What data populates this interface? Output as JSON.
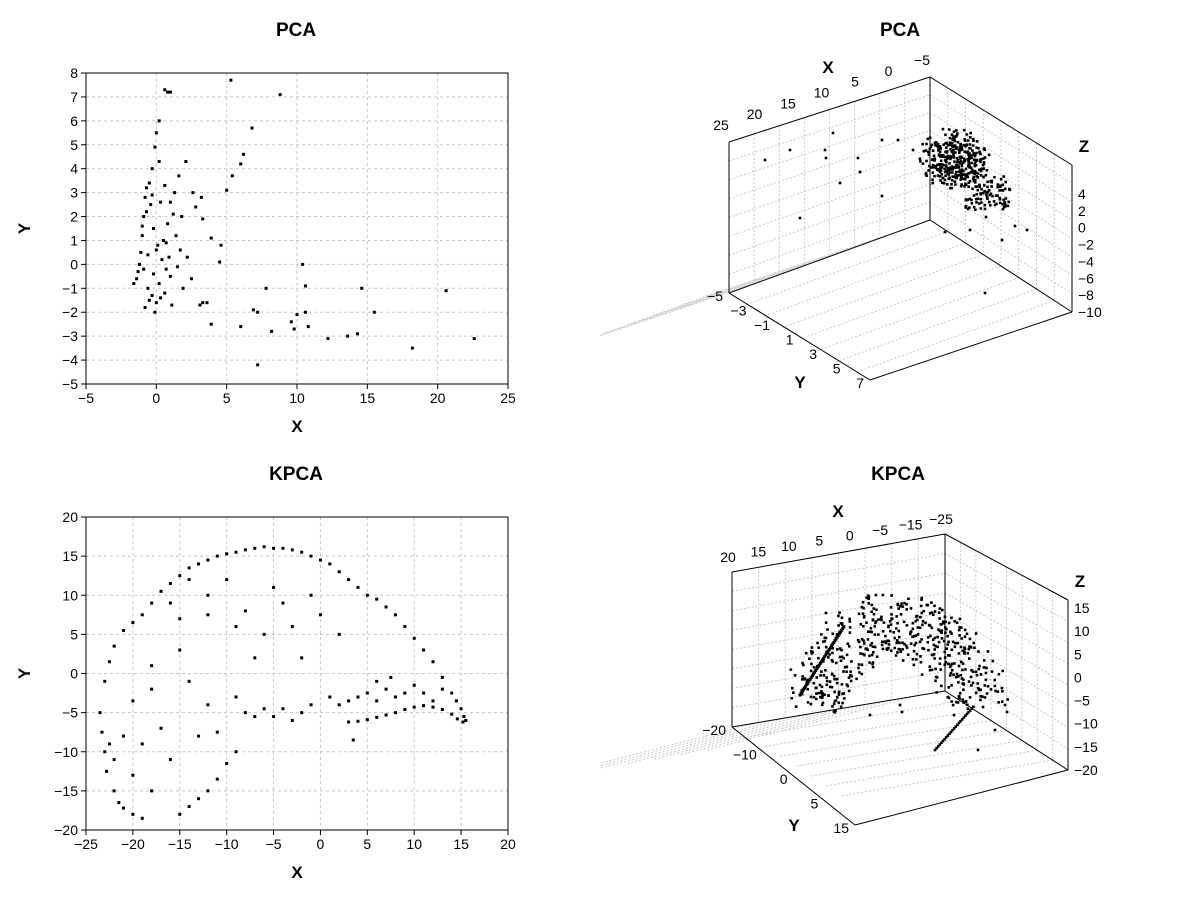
{
  "chart_data": [
    {
      "type": "scatter",
      "title": "PCA",
      "xlabel": "X",
      "ylabel": "Y",
      "xlim": [
        -5,
        25
      ],
      "ylim": [
        -5,
        8
      ],
      "xticks": [
        "-5",
        "0",
        "5",
        "10",
        "15",
        "20",
        "25"
      ],
      "yticks": [
        "-5",
        "-4",
        "-3",
        "-2",
        "-1",
        "0",
        "1",
        "2",
        "3",
        "4",
        "5",
        "6",
        "7",
        "8"
      ],
      "grid": true,
      "points": [
        [
          0.6,
          7.3
        ],
        [
          0.8,
          7.2
        ],
        [
          1.0,
          7.2
        ],
        [
          5.3,
          7.7
        ],
        [
          8.8,
          7.1
        ],
        [
          6.8,
          5.7
        ],
        [
          6.2,
          4.6
        ],
        [
          6.0,
          4.2
        ],
        [
          5.4,
          3.7
        ],
        [
          5.0,
          3.1
        ],
        [
          0.2,
          6.0
        ],
        [
          0.0,
          5.5
        ],
        [
          -0.1,
          4.9
        ],
        [
          0.2,
          4.3
        ],
        [
          -0.3,
          4.0
        ],
        [
          2.1,
          4.3
        ],
        [
          1.6,
          3.7
        ],
        [
          2.6,
          3.0
        ],
        [
          2.8,
          2.4
        ],
        [
          3.2,
          2.8
        ],
        [
          3.3,
          1.9
        ],
        [
          3.9,
          1.1
        ],
        [
          4.6,
          0.8
        ],
        [
          4.5,
          0.1
        ],
        [
          3.3,
          -1.6
        ],
        [
          3.1,
          -1.7
        ],
        [
          3.6,
          -1.6
        ],
        [
          3.9,
          -2.5
        ],
        [
          7.8,
          -1.0
        ],
        [
          6.9,
          -1.9
        ],
        [
          7.2,
          -2.0
        ],
        [
          6.0,
          -2.6
        ],
        [
          8.2,
          -2.8
        ],
        [
          7.2,
          -4.2
        ],
        [
          10.4,
          0.0
        ],
        [
          10.6,
          -0.9
        ],
        [
          10.0,
          -2.1
        ],
        [
          10.6,
          -2.0
        ],
        [
          9.6,
          -2.4
        ],
        [
          9.8,
          -2.7
        ],
        [
          10.8,
          -2.6
        ],
        [
          12.2,
          -3.1
        ],
        [
          13.6,
          -3.0
        ],
        [
          14.3,
          -2.9
        ],
        [
          15.5,
          -2.0
        ],
        [
          14.6,
          -1.0
        ],
        [
          18.2,
          -3.5
        ],
        [
          20.6,
          -1.1
        ],
        [
          22.6,
          -3.1
        ],
        [
          -1.4,
          -0.6
        ],
        [
          -1.3,
          -0.3
        ],
        [
          -1.1,
          0.5
        ],
        [
          -1.0,
          1.2
        ],
        [
          -0.9,
          2.0
        ],
        [
          -0.8,
          2.8
        ],
        [
          -0.7,
          3.2
        ],
        [
          -0.4,
          2.5
        ],
        [
          -0.2,
          1.5
        ],
        [
          0.1,
          0.8
        ],
        [
          0.4,
          0.2
        ],
        [
          0.7,
          -0.2
        ],
        [
          1.0,
          -0.5
        ],
        [
          -0.6,
          -1.0
        ],
        [
          -0.3,
          -1.3
        ],
        [
          0.0,
          -1.6
        ],
        [
          0.3,
          -1.4
        ],
        [
          0.6,
          -1.2
        ],
        [
          -0.8,
          -1.8
        ],
        [
          -0.5,
          -1.5
        ],
        [
          1.4,
          1.2
        ],
        [
          1.7,
          0.6
        ],
        [
          1.2,
          2.1
        ],
        [
          0.8,
          1.7
        ],
        [
          0.5,
          1.0
        ],
        [
          -1.6,
          -0.8
        ],
        [
          -1.2,
          0.0
        ],
        [
          -0.6,
          0.4
        ],
        [
          -0.2,
          -0.4
        ],
        [
          0.2,
          -0.8
        ],
        [
          0.9,
          0.3
        ],
        [
          1.5,
          -0.1
        ],
        [
          2.2,
          0.3
        ],
        [
          2.5,
          -0.6
        ],
        [
          1.9,
          -1.0
        ],
        [
          1.1,
          -1.7
        ],
        [
          -0.1,
          -2.0
        ],
        [
          -0.7,
          2.2
        ],
        [
          -0.5,
          3.4
        ],
        [
          -0.3,
          2.9
        ],
        [
          0.3,
          2.6
        ],
        [
          0.6,
          3.3
        ],
        [
          1.0,
          2.6
        ],
        [
          1.3,
          3.0
        ],
        [
          -1.0,
          1.6
        ],
        [
          -0.9,
          -0.2
        ],
        [
          0.0,
          0.6
        ],
        [
          0.7,
          0.9
        ],
        [
          1.8,
          2.0
        ]
      ]
    },
    {
      "type": "scatter",
      "title": "PCA",
      "xlabel": "X",
      "ylabel": "Y",
      "zlabel": "Z",
      "xticks": [
        "25",
        "20",
        "15",
        "10",
        "5",
        "0",
        "-5"
      ],
      "yticks": [
        "-5",
        "-3",
        "-1",
        "1",
        "3",
        "5",
        "7"
      ],
      "zticks": [
        "4",
        "2",
        "0",
        "-2",
        "-4",
        "-6",
        "-8",
        "-10"
      ],
      "grid": true
    },
    {
      "type": "scatter",
      "title": "KPCA",
      "xlabel": "X",
      "ylabel": "Y",
      "xlim": [
        -25,
        20
      ],
      "ylim": [
        -20,
        20
      ],
      "xticks": [
        "-25",
        "-20",
        "-15",
        "-10",
        "-5",
        "0",
        "5",
        "10",
        "15",
        "20"
      ],
      "yticks": [
        "-20",
        "-15",
        "-10",
        "-5",
        "0",
        "5",
        "10",
        "15",
        "20"
      ],
      "grid": true,
      "points": [
        [
          -23.5,
          -5.0
        ],
        [
          -23.3,
          -7.5
        ],
        [
          -23.0,
          -10.0
        ],
        [
          -22.8,
          -12.5
        ],
        [
          -22.0,
          -15.0
        ],
        [
          -21.5,
          -16.5
        ],
        [
          -21.0,
          -17.2
        ],
        [
          -20.0,
          -18.0
        ],
        [
          -19.0,
          -18.5
        ],
        [
          -15.0,
          -18.0
        ],
        [
          -14.0,
          -17.0
        ],
        [
          -13.0,
          -16.0
        ],
        [
          -12.0,
          -15.0
        ],
        [
          -11.0,
          -13.5
        ],
        [
          -10.0,
          -11.5
        ],
        [
          -9.0,
          -10.0
        ],
        [
          -23.0,
          -1.0
        ],
        [
          -22.5,
          1.5
        ],
        [
          -22.0,
          3.5
        ],
        [
          -21.0,
          5.5
        ],
        [
          -20.0,
          6.5
        ],
        [
          -19.0,
          7.5
        ],
        [
          -18.0,
          9.0
        ],
        [
          -17.0,
          10.5
        ],
        [
          -16.0,
          11.5
        ],
        [
          -15.0,
          12.5
        ],
        [
          -14.0,
          13.5
        ],
        [
          -13.0,
          14.0
        ],
        [
          -12.0,
          14.5
        ],
        [
          -11.0,
          15.0
        ],
        [
          -10.0,
          15.3
        ],
        [
          -9.0,
          15.5
        ],
        [
          -8.0,
          15.8
        ],
        [
          -7.0,
          16.0
        ],
        [
          -6.0,
          16.2
        ],
        [
          -5.0,
          16.0
        ],
        [
          -4.0,
          16.0
        ],
        [
          -3.0,
          15.8
        ],
        [
          -2.0,
          15.5
        ],
        [
          -1.0,
          15.0
        ],
        [
          0.0,
          14.5
        ],
        [
          1.0,
          14.0
        ],
        [
          2.0,
          13.0
        ],
        [
          3.0,
          12.0
        ],
        [
          4.0,
          11.0
        ],
        [
          5.0,
          10.0
        ],
        [
          6.0,
          9.5
        ],
        [
          7.0,
          8.5
        ],
        [
          8.0,
          7.5
        ],
        [
          9.0,
          6.0
        ],
        [
          10.0,
          4.5
        ],
        [
          11.0,
          3.0
        ],
        [
          12.0,
          1.5
        ],
        [
          13.0,
          -0.5
        ],
        [
          14.0,
          -2.5
        ],
        [
          14.5,
          -3.5
        ],
        [
          15.0,
          -4.5
        ],
        [
          15.3,
          -5.5
        ],
        [
          15.5,
          -6.0
        ],
        [
          15.2,
          -6.2
        ],
        [
          14.6,
          -5.8
        ],
        [
          14.0,
          -5.2
        ],
        [
          13.0,
          -4.6
        ],
        [
          12.0,
          -4.3
        ],
        [
          11.0,
          -4.1
        ],
        [
          10.0,
          -4.3
        ],
        [
          9.0,
          -4.6
        ],
        [
          8.0,
          -5.0
        ],
        [
          7.0,
          -5.3
        ],
        [
          6.0,
          -5.6
        ],
        [
          5.0,
          -5.9
        ],
        [
          4.0,
          -6.1
        ],
        [
          3.0,
          -6.2
        ],
        [
          -4.0,
          -4.5
        ],
        [
          -5.0,
          -5.5
        ],
        [
          -6.0,
          -4.5
        ],
        [
          -7.0,
          -5.5
        ],
        [
          -8.0,
          -5.0
        ],
        [
          -3.0,
          -6.0
        ],
        [
          -2.0,
          -5.0
        ],
        [
          -1.0,
          -4.0
        ],
        [
          1.0,
          -3.0
        ],
        [
          2.0,
          -4.0
        ],
        [
          3.0,
          -3.5
        ],
        [
          4.0,
          -3.0
        ],
        [
          5.0,
          -2.5
        ],
        [
          6.0,
          -3.5
        ],
        [
          7.0,
          -2.0
        ],
        [
          8.0,
          -3.0
        ],
        [
          9.0,
          -2.5
        ],
        [
          10.0,
          -1.5
        ],
        [
          11.0,
          -2.5
        ],
        [
          12.0,
          -3.5
        ],
        [
          13.0,
          -2.0
        ],
        [
          3.5,
          -8.5
        ],
        [
          6.0,
          -1.0
        ],
        [
          7.5,
          -0.5
        ],
        [
          -16.0,
          9.0
        ],
        [
          -15.0,
          7.0
        ],
        [
          -12.0,
          7.5
        ],
        [
          -8.0,
          8.0
        ],
        [
          -4.0,
          9.0
        ],
        [
          -1.0,
          10.0
        ],
        [
          -5.0,
          11.0
        ],
        [
          -3.0,
          6.0
        ],
        [
          0.0,
          7.5
        ],
        [
          -10.0,
          12.0
        ],
        [
          -14.0,
          12.0
        ],
        [
          -18.0,
          -2.0
        ],
        [
          -20.0,
          -3.5
        ],
        [
          -17.0,
          -7.0
        ],
        [
          -19.0,
          -9.0
        ],
        [
          -16.0,
          -11.0
        ],
        [
          -13.0,
          -8.0
        ],
        [
          -11.0,
          -7.5
        ],
        [
          -12.0,
          -4.0
        ],
        [
          -14.0,
          -1.0
        ],
        [
          -9.0,
          -3.0
        ],
        [
          -7.0,
          2.0
        ],
        [
          -2.0,
          2.0
        ],
        [
          2.0,
          5.0
        ],
        [
          -6.0,
          5.0
        ],
        [
          -9.0,
          6.0
        ],
        [
          -12.0,
          10.0
        ],
        [
          -15.0,
          3.0
        ],
        [
          -18.0,
          1.0
        ],
        [
          -21.0,
          -8.0
        ],
        [
          -20.0,
          -13.0
        ],
        [
          -18.0,
          -15.0
        ],
        [
          -22.0,
          -11.0
        ],
        [
          -22.5,
          -9.0
        ]
      ]
    },
    {
      "type": "scatter",
      "title": "KPCA",
      "xlabel": "X",
      "ylabel": "Y",
      "zlabel": "Z",
      "xticks": [
        "20",
        "15",
        "10",
        "5",
        "0",
        "-5",
        "-15",
        "-25"
      ],
      "yticks": [
        "-20",
        "-10",
        "0",
        "5",
        "15"
      ],
      "zticks": [
        "15",
        "10",
        "5",
        "0",
        "-5",
        "-10",
        "-15",
        "-20"
      ],
      "grid": true
    }
  ]
}
